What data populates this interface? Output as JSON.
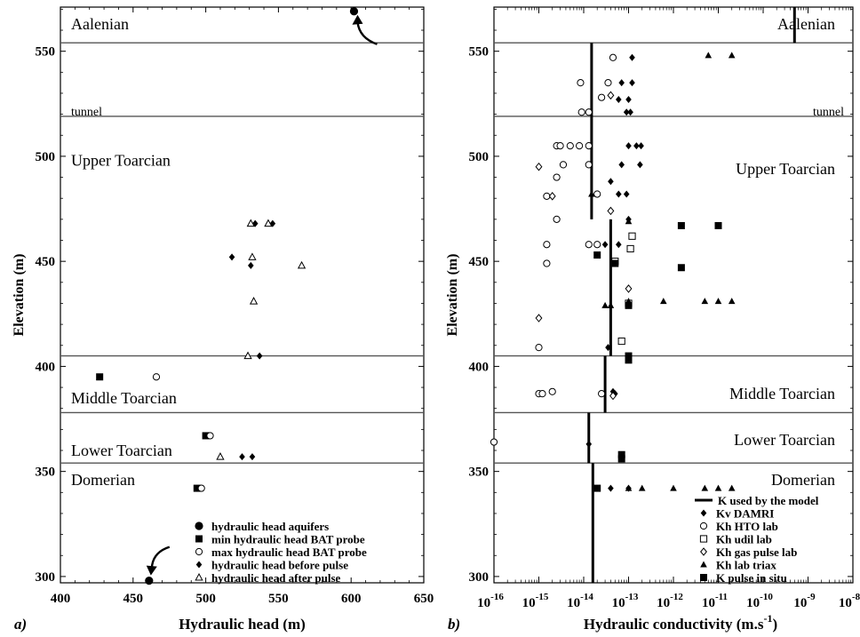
{
  "chart_data": [
    {
      "panel_label": "a)",
      "type": "scatter",
      "xlabel": "Hydraulic head (m)",
      "ylabel": "Elevation (m)",
      "xlim": [
        400,
        650
      ],
      "ylim": [
        297,
        571
      ],
      "x_ticks": [
        400,
        450,
        500,
        550,
        600,
        650
      ],
      "y_ticks": [
        300,
        350,
        400,
        450,
        500,
        550
      ],
      "grid": false,
      "legend_position": "bottom-right",
      "layer_boundaries": [
        554,
        519,
        405,
        378,
        354
      ],
      "layer_labels": [
        {
          "text": "Aalenian",
          "elevation": 563
        },
        {
          "text": "tunnel",
          "elevation": 522
        },
        {
          "text": "Upper Toarcian",
          "elevation": 498
        },
        {
          "text": "Middle Toarcian",
          "elevation": 385
        },
        {
          "text": "Lower Toarcian",
          "elevation": 360
        },
        {
          "text": "Domerian",
          "elevation": 346
        }
      ],
      "series": [
        {
          "name": "hydraulic head aquifers",
          "marker": "filled-circle",
          "points": [
            [
              602,
              569
            ],
            [
              461,
              298
            ]
          ]
        },
        {
          "name": "min hydraulic head BAT probe",
          "marker": "filled-square",
          "points": [
            [
              427,
              395
            ],
            [
              500,
              367
            ],
            [
              494,
              342
            ]
          ]
        },
        {
          "name": "max hydraulic head BAT probe",
          "marker": "open-circle",
          "points": [
            [
              466,
              395
            ],
            [
              503,
              367
            ],
            [
              497,
              342
            ]
          ]
        },
        {
          "name": "hydraulic head before pulse",
          "marker": "filled-diamond",
          "points": [
            [
              534,
              468
            ],
            [
              546,
              468
            ],
            [
              518,
              452
            ],
            [
              531,
              448
            ],
            [
              537,
              405
            ],
            [
              525,
              357
            ],
            [
              532,
              357
            ]
          ]
        },
        {
          "name": "hydraulic head after pulse",
          "marker": "open-triangle",
          "points": [
            [
              531,
              468
            ],
            [
              543,
              468
            ],
            [
              532,
              452
            ],
            [
              566,
              448
            ],
            [
              533,
              431
            ],
            [
              529,
              405
            ],
            [
              510,
              357
            ]
          ]
        }
      ],
      "annotations": [
        {
          "type": "arrow",
          "target": [
            602,
            569
          ]
        },
        {
          "type": "arrow",
          "target": [
            461,
            298
          ]
        }
      ]
    },
    {
      "panel_label": "b)",
      "type": "scatter",
      "x_scale": "log",
      "xlabel": "Hydraulic conductivity (m.s",
      "xlabel_sup": "-1",
      "xlabel_end": ")",
      "ylabel": "Elevation (m)",
      "xlim": [
        1e-16,
        1e-08
      ],
      "ylim": [
        297,
        571
      ],
      "x_tick_labels": [
        {
          "base": "10",
          "exp": "-16"
        },
        {
          "base": "10",
          "exp": "-15"
        },
        {
          "base": "10",
          "exp": "-14"
        },
        {
          "base": "10",
          "exp": "-13"
        },
        {
          "base": "10",
          "exp": "-12"
        },
        {
          "base": "10",
          "exp": "-11"
        },
        {
          "base": "10",
          "exp": "-10"
        },
        {
          "base": "10",
          "exp": "-9"
        },
        {
          "base": "10",
          "exp": "-8"
        }
      ],
      "y_ticks": [
        300,
        350,
        400,
        450,
        500,
        550
      ],
      "grid": false,
      "legend_position": "bottom-right",
      "layer_boundaries": [
        554,
        519,
        405,
        378,
        354
      ],
      "layer_labels": [
        {
          "text": "Aalenian",
          "elevation": 563
        },
        {
          "text": "tunnel",
          "elevation": 522
        },
        {
          "text": "Upper Toarcian",
          "elevation": 494
        },
        {
          "text": "Middle Toarcian",
          "elevation": 387
        },
        {
          "text": "Lower Toarcian",
          "elevation": 365
        },
        {
          "text": "Domerian",
          "elevation": 346
        }
      ],
      "model_K": {
        "name": "K used by the model",
        "segments": [
          {
            "x": 5e-10,
            "y": [
              554,
              571
            ]
          },
          {
            "x": 1.5e-14,
            "y": [
              470,
              554
            ]
          },
          {
            "x": 4e-14,
            "y": [
              405,
              470
            ]
          },
          {
            "x": 3e-14,
            "y": [
              378,
              405
            ]
          },
          {
            "x": 1.3e-14,
            "y": [
              354,
              378
            ]
          },
          {
            "x": 1.6e-14,
            "y": [
              297,
              354
            ]
          }
        ]
      },
      "series": [
        {
          "name": "Kv DAMRI",
          "marker": "filled-diamond",
          "points": [
            [
              1.2e-13,
              547
            ],
            [
              7e-14,
              535
            ],
            [
              1.2e-13,
              535
            ],
            [
              6e-14,
              527
            ],
            [
              1e-13,
              527
            ],
            [
              9e-14,
              521
            ],
            [
              1.1e-13,
              521
            ],
            [
              1e-13,
              505
            ],
            [
              1.5e-13,
              505
            ],
            [
              1.9e-13,
              505
            ],
            [
              7e-14,
              496
            ],
            [
              1.8e-13,
              496
            ],
            [
              4e-14,
              488
            ],
            [
              9e-14,
              482
            ],
            [
              6e-14,
              482
            ],
            [
              1e-13,
              470
            ],
            [
              3e-14,
              458
            ],
            [
              6e-14,
              458
            ],
            [
              3.5e-14,
              409
            ],
            [
              4.5e-14,
              388
            ],
            [
              5e-14,
              387
            ],
            [
              1.3e-14,
              363
            ],
            [
              4e-14,
              342
            ],
            [
              1e-13,
              342
            ]
          ]
        },
        {
          "name": "Kh HTO lab",
          "marker": "open-circle",
          "points": [
            [
              4.5e-14,
              547
            ],
            [
              8.5e-15,
              535
            ],
            [
              3.5e-14,
              535
            ],
            [
              2.5e-14,
              528
            ],
            [
              1.3e-14,
              521
            ],
            [
              9e-15,
              521
            ],
            [
              2.5e-15,
              505
            ],
            [
              3e-15,
              505
            ],
            [
              5e-15,
              505
            ],
            [
              8e-15,
              505
            ],
            [
              1.3e-14,
              505
            ],
            [
              3.5e-15,
              496
            ],
            [
              1.3e-14,
              496
            ],
            [
              2.5e-15,
              490
            ],
            [
              2e-14,
              482
            ],
            [
              1.5e-15,
              481
            ],
            [
              2.5e-15,
              470
            ],
            [
              1.5e-15,
              458
            ],
            [
              1.3e-14,
              458
            ],
            [
              2e-14,
              458
            ],
            [
              1.5e-15,
              449
            ],
            [
              1e-15,
              409
            ],
            [
              1e-15,
              387
            ],
            [
              1.2e-15,
              387
            ],
            [
              2e-15,
              388
            ],
            [
              2.5e-14,
              387
            ],
            [
              1e-16,
              364
            ]
          ]
        },
        {
          "name": "Kh udil lab",
          "marker": "open-square",
          "points": [
            [
              1.2e-13,
              462
            ],
            [
              1.1e-13,
              456
            ],
            [
              5e-14,
              450
            ],
            [
              1e-13,
              430
            ],
            [
              7e-14,
              412
            ]
          ]
        },
        {
          "name": "Kh gas pulse lab",
          "marker": "open-diamond",
          "points": [
            [
              4e-14,
              529
            ],
            [
              1e-15,
              495
            ],
            [
              2e-15,
              481
            ],
            [
              4e-14,
              474
            ],
            [
              1e-13,
              437
            ],
            [
              1e-15,
              423
            ],
            [
              4.5e-14,
              386
            ]
          ]
        },
        {
          "name": "Kh lab triax",
          "marker": "filled-triangle",
          "points": [
            [
              6e-12,
              548
            ],
            [
              2e-11,
              548
            ],
            [
              1.5e-14,
              482
            ],
            [
              1e-13,
              469
            ],
            [
              5e-12,
              431
            ],
            [
              1e-11,
              431
            ],
            [
              2e-11,
              431
            ],
            [
              3e-14,
              429
            ],
            [
              4e-14,
              429
            ],
            [
              6e-13,
              431
            ],
            [
              1e-13,
              431
            ],
            [
              1e-13,
              342
            ],
            [
              2e-13,
              342
            ],
            [
              1e-12,
              342
            ],
            [
              5e-12,
              342
            ],
            [
              1e-11,
              342
            ],
            [
              2e-11,
              342
            ]
          ]
        },
        {
          "name": "K pulse in situ",
          "marker": "filled-square",
          "points": [
            [
              1.5e-12,
              467
            ],
            [
              1e-11,
              467
            ],
            [
              2e-14,
              453
            ],
            [
              5e-14,
              449
            ],
            [
              1.5e-12,
              447
            ],
            [
              1e-13,
              429
            ],
            [
              1e-13,
              405
            ],
            [
              1e-13,
              403
            ],
            [
              7e-14,
              358
            ],
            [
              7e-14,
              356
            ],
            [
              2e-14,
              342
            ]
          ]
        }
      ]
    }
  ]
}
